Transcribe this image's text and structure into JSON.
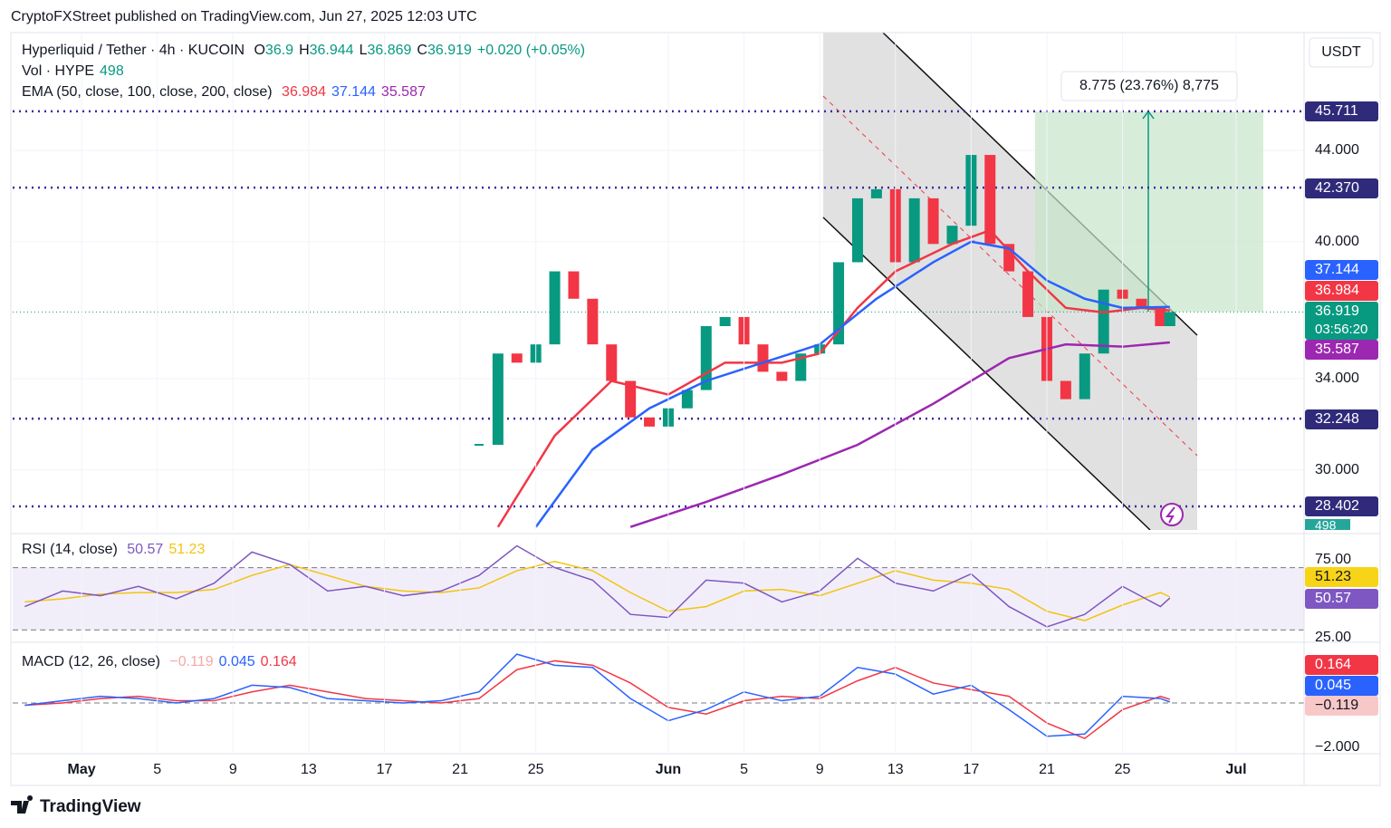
{
  "header": {
    "published": "CryptoFXStreet published on TradingView.com, Jun 27, 2025 12:03 UTC",
    "symbol": "Hyperliquid / Tether · 4h · KUCOIN",
    "ohlc": [
      {
        "key": "O",
        "value": 36.9,
        "label": "36.900"
      },
      {
        "key": "H",
        "value": 36.944
      },
      {
        "key": "L",
        "value": 36.869
      }
    ],
    "close_key": "C",
    "change": "+0.020 (+0.05%)",
    "volume_label": "Vol · HYPE",
    "volume": 498,
    "currency": "USDT"
  },
  "chart_data": {
    "type": "candlestick",
    "x": [
      21,
      22,
      23,
      24,
      25,
      26,
      27,
      28,
      29,
      30,
      31,
      32,
      33,
      34,
      35,
      36,
      37,
      38,
      39,
      40,
      41,
      42,
      43,
      44,
      45,
      46,
      47,
      48,
      49,
      50,
      51,
      52,
      53,
      54,
      55,
      56,
      57,
      57.5
    ],
    "close": [
      31.1,
      35.1,
      34.7,
      35.5,
      38.7,
      37.5,
      35.5,
      33.9,
      32.3,
      31.9,
      32.7,
      33.5,
      36.3,
      36.7,
      35.5,
      34.3,
      33.9,
      35.1,
      35.5,
      39.1,
      41.9,
      42.3,
      39.1,
      41.9,
      39.9,
      40.7,
      43.8,
      39.9,
      38.7,
      36.7,
      33.9,
      33.1,
      35.1,
      37.9,
      37.5,
      37.1,
      36.3,
      36.919
    ],
    "countdown": "03:56:20",
    "ema_label": "EMA (50, close, 100, close, 200, close)",
    "ema": [
      {
        "color": "#f23645",
        "x": [
          22,
          25,
          28,
          31,
          34,
          37,
          39,
          41,
          43,
          46,
          48,
          50,
          52,
          54,
          56,
          57.5
        ],
        "values": [
          27.5,
          31.5,
          33.9,
          33.3,
          34.7,
          34.7,
          35.1,
          37.1,
          38.7,
          39.9,
          40.5,
          38.7,
          37.1,
          36.9,
          37.1,
          36.984
        ]
      },
      {
        "color": "#2962ff",
        "x": [
          24,
          27,
          30,
          33,
          36,
          39,
          42,
          45,
          47,
          49,
          51,
          53,
          55,
          57.5
        ],
        "values": [
          27.5,
          30.9,
          32.7,
          33.9,
          34.7,
          35.5,
          37.5,
          39.1,
          40.0,
          39.7,
          38.3,
          37.5,
          37.1,
          37.144
        ]
      },
      {
        "color": "#9c27b0",
        "x": [
          29,
          33,
          37,
          41,
          45,
          49,
          52,
          55,
          57.5
        ],
        "values": [
          27.5,
          28.6,
          29.8,
          31.1,
          32.9,
          34.9,
          35.5,
          35.4,
          35.587
        ]
      }
    ],
    "levels": [
      45.711,
      {
        "value": 42.37,
        "label": "42.370"
      },
      32.248,
      28.402
    ],
    "measure": "8.775 (23.76%) 8,775",
    "xlim": [
      -3.64,
      64.59
    ],
    "xticks": [
      {
        "value": 0,
        "label": "May"
      },
      {
        "value": 4,
        "label": "5"
      },
      {
        "value": 8,
        "label": "9"
      },
      {
        "value": 12,
        "label": "13"
      },
      {
        "value": 16,
        "label": "17"
      },
      {
        "value": 20,
        "label": "21"
      },
      {
        "value": 24,
        "label": "25"
      },
      {
        "value": 31,
        "label": "Jun"
      },
      {
        "value": 35,
        "label": "5"
      },
      {
        "value": 39,
        "label": "9"
      },
      {
        "value": 43,
        "label": "13"
      },
      {
        "value": 47,
        "label": "17"
      },
      {
        "value": 51,
        "label": "21"
      },
      {
        "value": 55,
        "label": "25"
      },
      {
        "value": 61,
        "label": "Jul"
      }
    ],
    "ylim": [
      27.37,
      49.16
    ],
    "yticks": [
      {
        "value": 30,
        "label": "30.000"
      },
      {
        "value": 34,
        "label": "34.000"
      },
      {
        "value": 40,
        "label": "40.000"
      },
      {
        "value": 44,
        "label": "44.000"
      }
    ],
    "grid": true
  },
  "rsi": {
    "title": "RSI (14, close)",
    "x": [
      -3,
      -1,
      1,
      3,
      5,
      7,
      9,
      11,
      13,
      15,
      17,
      19,
      21,
      23,
      25,
      27,
      29,
      31,
      33,
      35,
      37,
      39,
      41,
      43,
      45,
      47,
      49,
      51,
      53,
      55,
      57,
      57.5
    ],
    "values": [
      45,
      55,
      52,
      58,
      50,
      60,
      80,
      72,
      55,
      58,
      52,
      55,
      65,
      84,
      70,
      62,
      40,
      38,
      62,
      60,
      48,
      55,
      76,
      60,
      55,
      66,
      45,
      32,
      40,
      58,
      45,
      50.57
    ],
    "ma": [
      48,
      50,
      53,
      54,
      54,
      56,
      65,
      72,
      65,
      58,
      55,
      54,
      57,
      68,
      74,
      68,
      54,
      42,
      45,
      55,
      56,
      52,
      60,
      68,
      62,
      60,
      56,
      42,
      36,
      46,
      54,
      51.23
    ],
    "bands": [
      70,
      30
    ],
    "ylim": [
      22.67,
      88.37
    ],
    "yticks": [
      {
        "value": 75,
        "label": "75.00"
      },
      {
        "value": 25,
        "label": "25.00"
      }
    ]
  },
  "macd": {
    "title": "MACD (12, 26, close)",
    "histogram": {
      "value": -0.119,
      "label": "−0.119"
    },
    "x": [
      -3,
      -1,
      1,
      3,
      5,
      7,
      9,
      11,
      13,
      15,
      17,
      19,
      21,
      23,
      25,
      27,
      29,
      31,
      33,
      35,
      37,
      39,
      41,
      43,
      45,
      47,
      49,
      51,
      53,
      55,
      57,
      57.5
    ],
    "macd": [
      -0.1,
      0.1,
      0.3,
      0.2,
      0.0,
      0.2,
      0.8,
      0.7,
      0.2,
      0.1,
      0.0,
      0.1,
      0.5,
      2.2,
      1.7,
      1.6,
      0.2,
      -0.8,
      -0.3,
      0.5,
      0.1,
      0.3,
      1.6,
      1.3,
      0.4,
      0.8,
      -0.3,
      -1.5,
      -1.4,
      0.3,
      0.2,
      0.045
    ],
    "signal": [
      -0.1,
      0.0,
      0.2,
      0.3,
      0.1,
      0.1,
      0.5,
      0.8,
      0.5,
      0.2,
      0.1,
      0.0,
      0.2,
      1.5,
      1.9,
      1.7,
      0.9,
      -0.2,
      -0.5,
      0.1,
      0.3,
      0.2,
      1.0,
      1.6,
      0.9,
      0.6,
      0.3,
      -0.9,
      -1.6,
      -0.3,
      0.3,
      0.164
    ],
    "ylim": [
      -2.286,
      2.612
    ],
    "yticks": [
      {
        "value": -2,
        "label": "−2.000"
      }
    ]
  },
  "footer": "TradingView"
}
